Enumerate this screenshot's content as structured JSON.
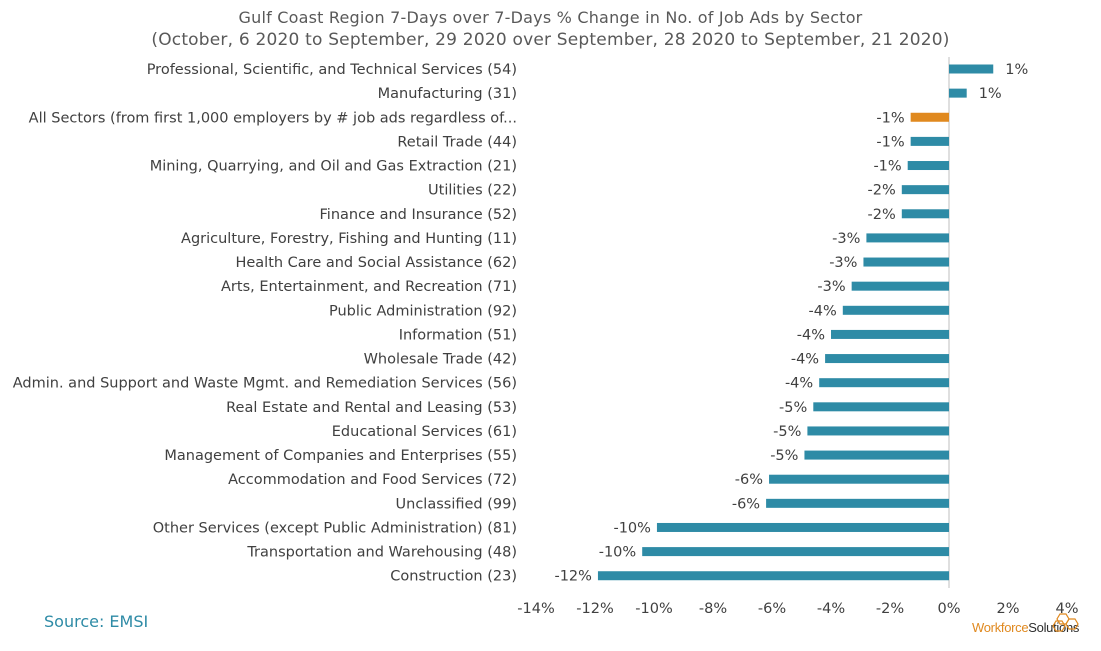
{
  "chart_data": {
    "type": "bar",
    "orientation": "horizontal",
    "title": "Gulf Coast Region 7-Days over 7-Days % Change in No. of Job Ads by Sector",
    "subtitle": "(October, 6 2020 to September, 29 2020 over September, 28 2020 to September, 21 2020)",
    "categories": [
      "Professional, Scientific, and Technical Services (54)",
      "Manufacturing (31)",
      "All Sectors (from first 1,000 employers by # job ads regardless of...",
      "Retail Trade (44)",
      "Mining, Quarrying, and Oil and Gas Extraction (21)",
      "Utilities (22)",
      "Finance and Insurance (52)",
      "Agriculture, Forestry, Fishing and Hunting (11)",
      "Health Care and Social Assistance (62)",
      "Arts, Entertainment, and Recreation (71)",
      "Public Administration (92)",
      "Information (51)",
      "Wholesale Trade (42)",
      "Admin. and Support and Waste Mgmt. and Remediation Services (56)",
      "Real Estate and Rental and Leasing (53)",
      "Educational Services (61)",
      "Management of Companies and Enterprises (55)",
      "Accommodation and Food Services (72)",
      "Unclassified (99)",
      "Other Services (except Public Administration) (81)",
      "Transportation and Warehousing (48)",
      "Construction (23)"
    ],
    "values": [
      1.5,
      0.6,
      -1.3,
      -1.3,
      -1.4,
      -1.6,
      -1.6,
      -2.8,
      -2.9,
      -3.3,
      -3.6,
      -4.0,
      -4.2,
      -4.4,
      -4.6,
      -4.8,
      -4.9,
      -6.1,
      -6.2,
      -9.9,
      -10.4,
      -11.9
    ],
    "data_labels": [
      "1%",
      "1%",
      "-1%",
      "-1%",
      "-1%",
      "-2%",
      "-2%",
      "-3%",
      "-3%",
      "-3%",
      "-4%",
      "-4%",
      "-4%",
      "-4%",
      "-5%",
      "-5%",
      "-5%",
      "-6%",
      "-6%",
      "-10%",
      "-10%",
      "-12%"
    ],
    "highlight_index": 2,
    "xlim": [
      -14,
      4
    ],
    "x_ticks": [
      -14,
      -12,
      -10,
      -8,
      -6,
      -4,
      -2,
      0,
      2,
      4
    ],
    "x_tick_labels": [
      "-14%",
      "-12%",
      "-10%",
      "-8%",
      "-6%",
      "-4%",
      "-2%",
      "0%",
      "2%",
      "4%"
    ],
    "grid": false,
    "colors": {
      "bar": "#2E8BA6",
      "highlight": "#E0891F",
      "axis": "#BFBFBF"
    }
  },
  "source": "Source: EMSI",
  "logo": {
    "word1": "Workforce",
    "word2": "Solutions"
  }
}
